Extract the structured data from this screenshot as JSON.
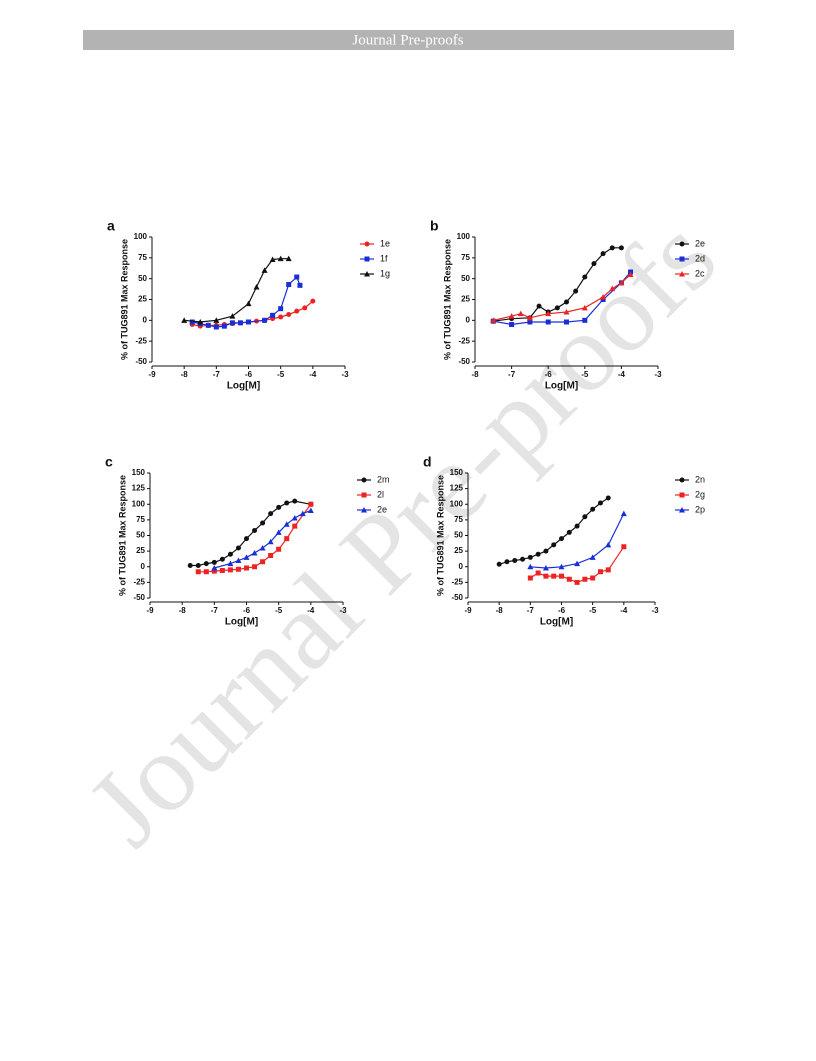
{
  "header": {
    "title": "Journal Pre-proofs"
  },
  "watermark": "Journal Pre-proofs",
  "chart_data": [
    {
      "type": "line",
      "panel": "a",
      "xlabel": "Log[M]",
      "ylabel": "% of TUG891 Max Response",
      "xlim": [
        -9,
        -3
      ],
      "xticks": [
        -9,
        -8,
        -7,
        -6,
        -5,
        -4,
        -3
      ],
      "ylim": [
        -50,
        100
      ],
      "yticks": [
        -50,
        -25,
        0,
        25,
        50,
        75,
        100
      ],
      "series": [
        {
          "name": "1e",
          "color": "#ee2222",
          "marker": "circle",
          "x": [
            -7.75,
            -7.5,
            -7.25,
            -7,
            -6.75,
            -6.5,
            -6.25,
            -6,
            -5.75,
            -5.5,
            -5.25,
            -5,
            -4.75,
            -4.5,
            -4.25,
            -4
          ],
          "values": [
            -5,
            -7,
            -6,
            -6,
            -5,
            -4,
            -3,
            -2,
            -1,
            0,
            2,
            4,
            7,
            11,
            15,
            23
          ]
        },
        {
          "name": "1f",
          "color": "#1a2ed8",
          "marker": "square",
          "x": [
            -7.75,
            -7.5,
            -7.25,
            -7,
            -6.75,
            -6.5,
            -6.25,
            -6,
            -5.5,
            -5.25,
            -5,
            -4.75,
            -4.5,
            -4.4
          ],
          "values": [
            -2,
            -4,
            -6,
            -8,
            -7,
            -3,
            -3,
            -2,
            0,
            6,
            14,
            43,
            52,
            42
          ]
        },
        {
          "name": "1g",
          "color": "#111111",
          "marker": "triangle",
          "x": [
            -8,
            -7.5,
            -7,
            -6.5,
            -6,
            -5.75,
            -5.5,
            -5.25,
            -5,
            -4.75
          ],
          "values": [
            0,
            -2,
            0,
            5,
            20,
            40,
            60,
            73,
            74,
            74
          ]
        }
      ]
    },
    {
      "type": "line",
      "panel": "b",
      "xlabel": "Log[M]",
      "ylabel": "% of TUG891 Max Response",
      "xlim": [
        -8,
        -3
      ],
      "xticks": [
        -8,
        -7,
        -6,
        -5,
        -4,
        -3
      ],
      "ylim": [
        -50,
        100
      ],
      "yticks": [
        -50,
        -25,
        0,
        25,
        50,
        75,
        100
      ],
      "series": [
        {
          "name": "2e",
          "color": "#111111",
          "marker": "circle",
          "x": [
            -7.5,
            -7,
            -6.5,
            -6.25,
            -6,
            -5.75,
            -5.5,
            -5.25,
            -5,
            -4.75,
            -4.5,
            -4.25,
            -4
          ],
          "values": [
            -1,
            2,
            3,
            17,
            10,
            15,
            22,
            35,
            52,
            68,
            80,
            87,
            87
          ]
        },
        {
          "name": "2d",
          "color": "#1a2ed8",
          "marker": "square",
          "x": [
            -7.5,
            -7,
            -6.5,
            -6,
            -5.5,
            -5,
            -4.5,
            -4,
            -3.75
          ],
          "values": [
            -1,
            -5,
            -2,
            -2,
            -2,
            0,
            25,
            45,
            58
          ]
        },
        {
          "name": "2c",
          "color": "#ee2222",
          "marker": "triangle",
          "x": [
            -7.5,
            -7,
            -6.75,
            -6.5,
            -6,
            -5.5,
            -5,
            -4.5,
            -4.25,
            -4,
            -3.75
          ],
          "values": [
            0,
            5,
            8,
            3,
            8,
            10,
            15,
            28,
            38,
            45,
            55
          ]
        }
      ]
    },
    {
      "type": "line",
      "panel": "c",
      "xlabel": "Log[M]",
      "ylabel": "% of TUG891 Max Response",
      "xlim": [
        -9,
        -3
      ],
      "xticks": [
        -9,
        -8,
        -7,
        -6,
        -5,
        -4,
        -3
      ],
      "ylim": [
        -50,
        150
      ],
      "yticks": [
        -50,
        -25,
        0,
        25,
        50,
        75,
        100,
        125,
        150
      ],
      "series": [
        {
          "name": "2m",
          "color": "#111111",
          "marker": "circle",
          "x": [
            -7.75,
            -7.5,
            -7.25,
            -7,
            -6.75,
            -6.5,
            -6.25,
            -6,
            -5.75,
            -5.5,
            -5.25,
            -5,
            -4.75,
            -4.5,
            -4
          ],
          "values": [
            2,
            2,
            5,
            7,
            12,
            20,
            30,
            45,
            58,
            70,
            85,
            95,
            102,
            105,
            100
          ]
        },
        {
          "name": "2l",
          "color": "#ee2222",
          "marker": "square",
          "x": [
            -7.5,
            -7.25,
            -7,
            -6.75,
            -6.5,
            -6.25,
            -6,
            -5.75,
            -5.5,
            -5.25,
            -5,
            -4.75,
            -4.5,
            -4
          ],
          "values": [
            -8,
            -8,
            -7,
            -6,
            -5,
            -4,
            -2,
            0,
            8,
            18,
            28,
            45,
            65,
            100
          ]
        },
        {
          "name": "2e",
          "color": "#1a2ed8",
          "marker": "triangle",
          "x": [
            -7,
            -6.5,
            -6.25,
            -6,
            -5.75,
            -5.5,
            -5.25,
            -5,
            -4.75,
            -4.5,
            -4.25,
            -4
          ],
          "values": [
            -2,
            5,
            10,
            15,
            22,
            30,
            40,
            55,
            68,
            78,
            85,
            90
          ]
        }
      ]
    },
    {
      "type": "line",
      "panel": "d",
      "xlabel": "Log[M]",
      "ylabel": "% of TUG891 Max Response",
      "xlim": [
        -9,
        -3
      ],
      "xticks": [
        -9,
        -8,
        -7,
        -6,
        -5,
        -4,
        -3
      ],
      "ylim": [
        -50,
        150
      ],
      "yticks": [
        -50,
        -25,
        0,
        25,
        50,
        75,
        100,
        125,
        150
      ],
      "series": [
        {
          "name": "2n",
          "color": "#111111",
          "marker": "circle",
          "x": [
            -8,
            -7.75,
            -7.5,
            -7.25,
            -7,
            -6.75,
            -6.5,
            -6.25,
            -6,
            -5.75,
            -5.5,
            -5.25,
            -5,
            -4.75,
            -4.5
          ],
          "values": [
            4,
            8,
            10,
            12,
            15,
            20,
            25,
            35,
            45,
            55,
            65,
            80,
            92,
            102,
            110
          ]
        },
        {
          "name": "2g",
          "color": "#ee2222",
          "marker": "square",
          "x": [
            -7,
            -6.75,
            -6.5,
            -6.25,
            -6,
            -5.75,
            -5.5,
            -5.25,
            -5,
            -4.75,
            -4.5,
            -4
          ],
          "values": [
            -18,
            -10,
            -15,
            -15,
            -15,
            -20,
            -25,
            -20,
            -18,
            -8,
            -5,
            32
          ]
        },
        {
          "name": "2p",
          "color": "#1a2ed8",
          "marker": "triangle",
          "x": [
            -7,
            -6.5,
            -6,
            -5.5,
            -5,
            -4.5,
            -4
          ],
          "values": [
            0,
            -2,
            0,
            5,
            15,
            35,
            85
          ]
        }
      ]
    }
  ]
}
